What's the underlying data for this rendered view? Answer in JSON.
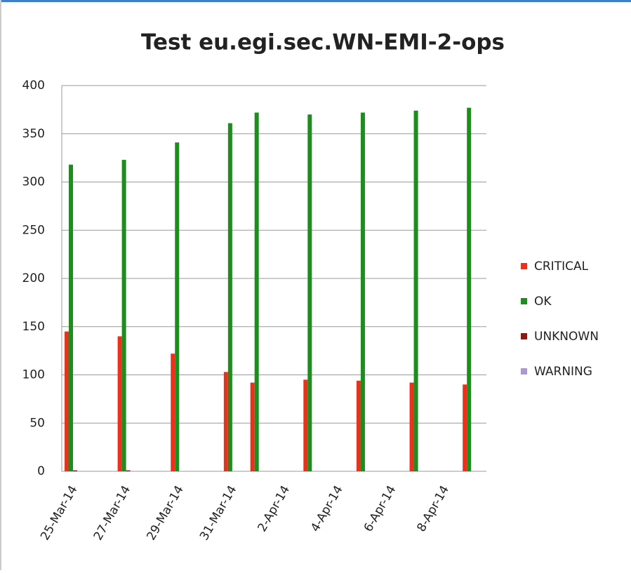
{
  "chart_data": {
    "type": "bar",
    "title": "Test eu.egi.sec.WN-EMI-2-ops",
    "categories": [
      "25-Mar-14",
      null,
      "27-Mar-14",
      null,
      "29-Mar-14",
      null,
      "31-Mar-14",
      null,
      "2-Apr-14",
      null,
      "4-Apr-14",
      null,
      "6-Apr-14",
      null,
      "8-Apr-14",
      null
    ],
    "series": [
      {
        "name": "CRITICAL",
        "color": "#e8321e",
        "values": [
          145,
          null,
          140,
          null,
          122,
          null,
          103,
          92,
          null,
          95,
          null,
          94,
          null,
          92,
          null,
          90
        ]
      },
      {
        "name": "OK",
        "color": "#1e8c1e",
        "values": [
          318,
          null,
          323,
          null,
          341,
          null,
          361,
          372,
          null,
          370,
          null,
          372,
          null,
          374,
          null,
          377
        ]
      },
      {
        "name": "UNKNOWN",
        "color": "#8b1a10",
        "values": [
          1,
          null,
          1,
          null,
          0,
          null,
          0,
          0,
          null,
          0,
          null,
          0,
          null,
          0,
          null,
          0
        ]
      },
      {
        "name": "WARNING",
        "color": "#a99ad6",
        "values": [
          0,
          null,
          0,
          null,
          0,
          null,
          0,
          0,
          null,
          0,
          null,
          0,
          null,
          0,
          null,
          0
        ]
      }
    ],
    "ylim": [
      0,
      400
    ],
    "yticks": [
      0,
      50,
      100,
      150,
      200,
      250,
      300,
      350,
      400
    ],
    "grid": true,
    "legend": "right"
  }
}
